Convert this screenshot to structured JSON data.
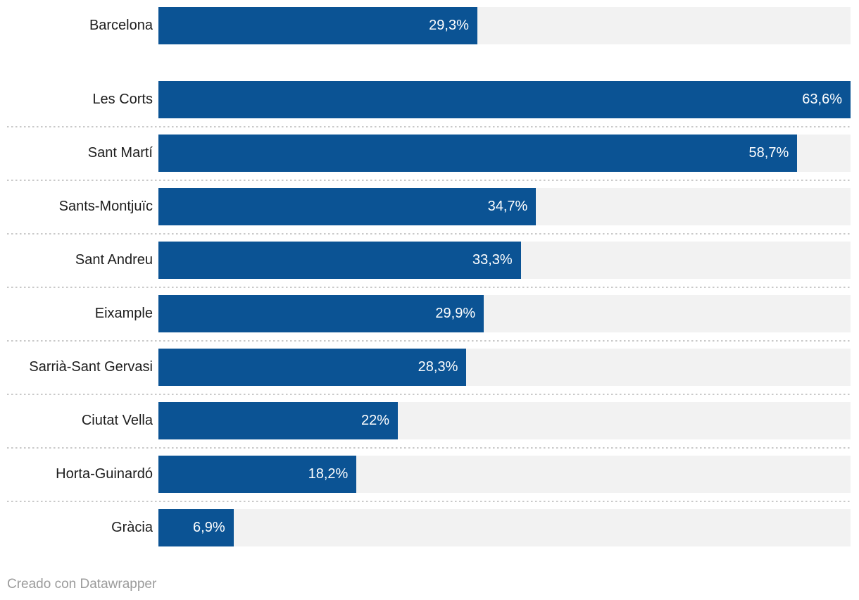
{
  "chart_data": {
    "type": "bar",
    "orientation": "horizontal",
    "title": "",
    "xlabel": "",
    "ylabel": "",
    "xlim": [
      0,
      63.6
    ],
    "grid": false,
    "legend": false,
    "categories": [
      "Barcelona",
      "Les Corts",
      "Sant Martí",
      "Sants-Montjuïc",
      "Sant Andreu",
      "Eixample",
      "Sarrià-Sant Gervasi",
      "Ciutat Vella",
      "Horta-Guinardó",
      "Gràcia"
    ],
    "values": [
      29.3,
      63.6,
      58.7,
      34.7,
      33.3,
      29.9,
      28.3,
      22,
      18.2,
      6.9
    ],
    "value_labels": [
      "29,3%",
      "63,6%",
      "58,7%",
      "34,7%",
      "33,3%",
      "29,9%",
      "28,3%",
      "22%",
      "18,2%",
      "6,9%"
    ],
    "layout_hints": {
      "first_row_separated_by_gap": true,
      "dotted_separators_between_rows": true,
      "value_labels_inside_bars_right_aligned": true
    }
  },
  "colors": {
    "bar": "#0b5394",
    "track": "#f2f2f2",
    "label": "#1d1d1d",
    "value_label": "#ffffff",
    "separator": "#c9c9c9",
    "credit": "#9b9b9b"
  },
  "footer": {
    "credit": "Creado con Datawrapper"
  }
}
